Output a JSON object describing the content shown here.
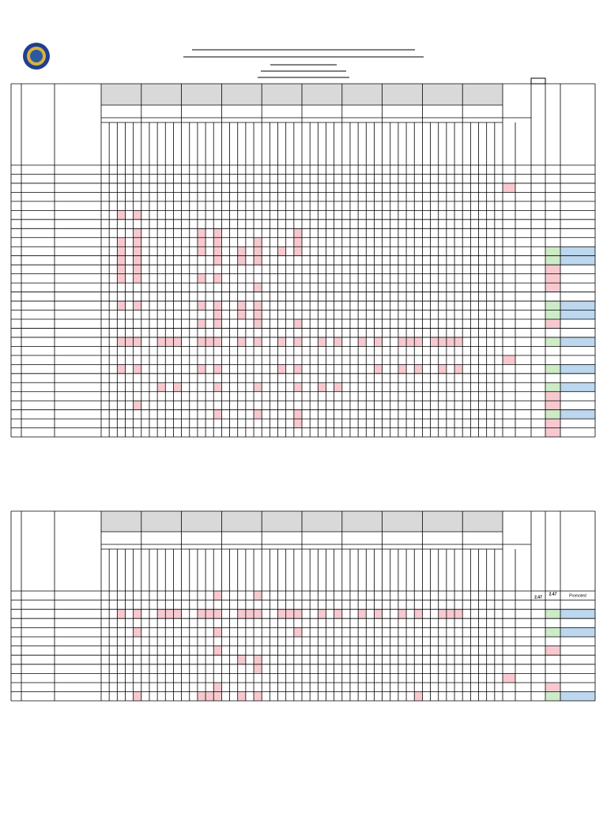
{
  "table2": {
    "rows": [
      {
        "general_average": "2.47",
        "final_average": "2.47",
        "remarks": "Promoted"
      }
    ]
  }
}
